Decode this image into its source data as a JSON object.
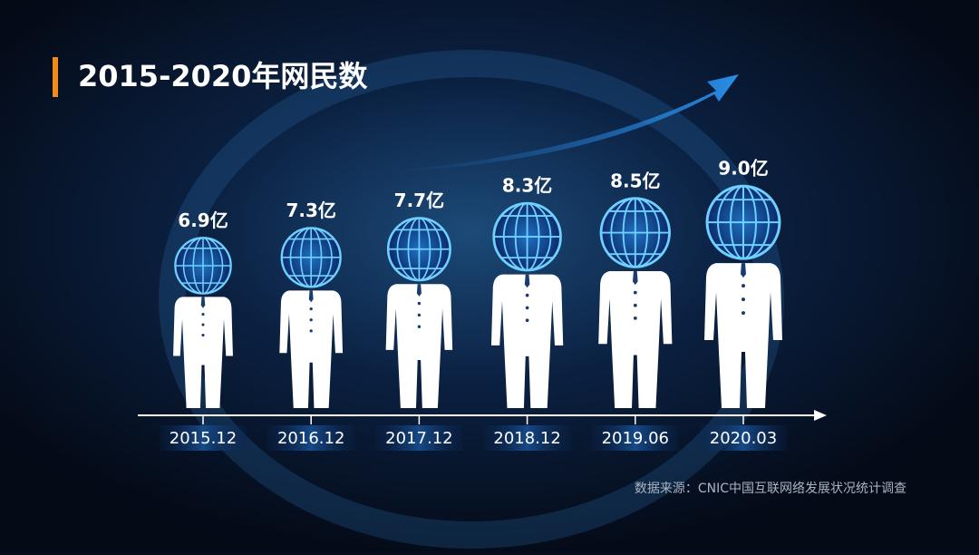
{
  "chart_data": {
    "type": "pictorial",
    "title": "2015-2020年网民数",
    "categories": [
      "2015.12",
      "2016.12",
      "2017.12",
      "2018.12",
      "2019.06",
      "2020.03"
    ],
    "values": [
      6.9,
      7.3,
      7.7,
      8.3,
      8.5,
      9.0
    ],
    "value_labels": [
      "6.9亿",
      "7.3亿",
      "7.7亿",
      "8.3亿",
      "8.5亿",
      "9.0亿"
    ],
    "source": "数据来源：CNIC中国互联网络发展状况统计调查"
  }
}
